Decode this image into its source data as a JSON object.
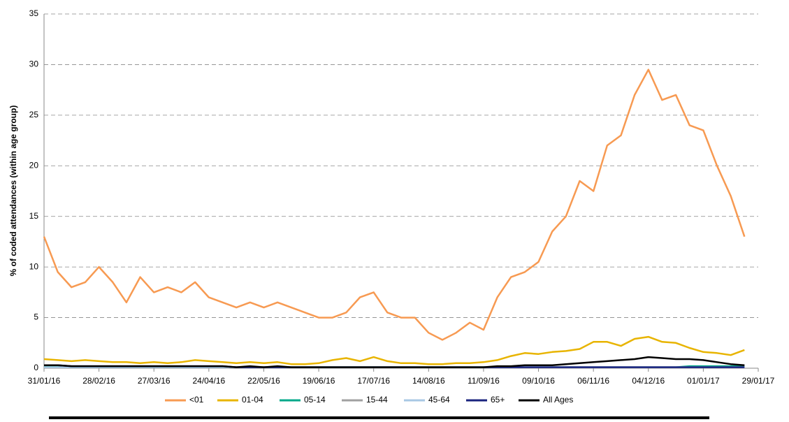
{
  "chart_data": {
    "type": "line",
    "y_label": "% of coded attendances (within age group)",
    "x": [
      "31/01/16",
      "07/02/16",
      "14/02/16",
      "21/02/16",
      "28/02/16",
      "06/03/16",
      "13/03/16",
      "20/03/16",
      "27/03/16",
      "03/04/16",
      "10/04/16",
      "17/04/16",
      "24/04/16",
      "01/05/16",
      "08/05/16",
      "15/05/16",
      "22/05/16",
      "29/05/16",
      "05/06/16",
      "12/06/16",
      "19/06/16",
      "26/06/16",
      "03/07/16",
      "10/07/16",
      "17/07/16",
      "24/07/16",
      "31/07/16",
      "07/08/16",
      "14/08/16",
      "21/08/16",
      "28/08/16",
      "04/09/16",
      "11/09/16",
      "18/09/16",
      "25/09/16",
      "02/10/16",
      "09/10/16",
      "16/10/16",
      "23/10/16",
      "30/10/16",
      "06/11/16",
      "13/11/16",
      "20/11/16",
      "27/11/16",
      "04/12/16",
      "11/12/16",
      "18/12/16",
      "25/12/16",
      "01/01/17",
      "08/01/17",
      "15/01/17",
      "22/01/17"
    ],
    "xlim": [
      "31/01/16",
      "29/01/17"
    ],
    "xticks": [
      "31/01/16",
      "28/02/16",
      "27/03/16",
      "24/04/16",
      "22/05/16",
      "19/06/16",
      "17/07/16",
      "14/08/16",
      "11/09/16",
      "09/10/16",
      "06/11/16",
      "04/12/16",
      "01/01/17",
      "29/01/17"
    ],
    "ylim": [
      0,
      35
    ],
    "yticks": [
      0,
      5,
      10,
      15,
      20,
      25,
      30,
      35
    ],
    "grid": true,
    "series": [
      {
        "name": "<01",
        "color": "#f79a52",
        "values": [
          13,
          9.5,
          8,
          8.5,
          10,
          8.5,
          6.5,
          9,
          7.5,
          8,
          7.5,
          8.5,
          7,
          6.5,
          6,
          6.5,
          6,
          6.5,
          6,
          5.5,
          5,
          5,
          5.5,
          7,
          7.5,
          5.5,
          5,
          5,
          3.5,
          2.8,
          3.5,
          4.5,
          3.8,
          7,
          9,
          9.5,
          10.5,
          13.5,
          15,
          18.5,
          17.5,
          22,
          23,
          27,
          29.5,
          26.5,
          27,
          24,
          23.5,
          20,
          17,
          13
        ]
      },
      {
        "name": "01-04",
        "color": "#e8b400",
        "values": [
          0.9,
          0.8,
          0.7,
          0.8,
          0.7,
          0.6,
          0.6,
          0.5,
          0.6,
          0.5,
          0.6,
          0.8,
          0.7,
          0.6,
          0.5,
          0.6,
          0.5,
          0.6,
          0.4,
          0.4,
          0.5,
          0.8,
          1.0,
          0.7,
          1.1,
          0.7,
          0.5,
          0.5,
          0.4,
          0.4,
          0.5,
          0.5,
          0.6,
          0.8,
          1.2,
          1.5,
          1.4,
          1.6,
          1.7,
          1.9,
          2.6,
          2.6,
          2.2,
          2.9,
          3.1,
          2.6,
          2.5,
          2.0,
          1.6,
          1.5,
          1.3,
          1.8
        ]
      },
      {
        "name": "05-14",
        "color": "#00a88a",
        "values": [
          0.2,
          0.2,
          0.1,
          0.1,
          0.1,
          0.1,
          0.1,
          0.1,
          0.1,
          0.1,
          0.1,
          0.1,
          0.1,
          0.1,
          0.1,
          0.1,
          0.1,
          0.1,
          0.1,
          0.1,
          0.1,
          0.1,
          0.1,
          0.1,
          0.1,
          0.1,
          0.1,
          0.1,
          0.1,
          0.1,
          0.1,
          0.1,
          0.1,
          0.1,
          0.1,
          0.1,
          0.1,
          0.1,
          0.1,
          0.1,
          0.1,
          0.1,
          0.1,
          0.1,
          0.1,
          0.1,
          0.1,
          0.2,
          0.2,
          0.2,
          0.2,
          0.2
        ]
      },
      {
        "name": "15-44",
        "color": "#a0a0a0",
        "values": [
          0.1,
          0.1,
          0.1,
          0.1,
          0.1,
          0.1,
          0.1,
          0.1,
          0.1,
          0.1,
          0.1,
          0.1,
          0.1,
          0.1,
          0.1,
          0.1,
          0.1,
          0.1,
          0.1,
          0.1,
          0.1,
          0.1,
          0.1,
          0.1,
          0.1,
          0.1,
          0.1,
          0.1,
          0.1,
          0.1,
          0.1,
          0.1,
          0.1,
          0.1,
          0.1,
          0.1,
          0.1,
          0.1,
          0.1,
          0.1,
          0.1,
          0.1,
          0.1,
          0.1,
          0.1,
          0.1,
          0.1,
          0.1,
          0.1,
          0.1,
          0.1,
          0.1
        ]
      },
      {
        "name": "45-64",
        "color": "#a8c8e4",
        "values": [
          0.1,
          0.1,
          0.1,
          0.1,
          0.1,
          0.1,
          0.1,
          0.1,
          0.1,
          0.1,
          0.1,
          0.1,
          0.1,
          0.1,
          0.1,
          0.1,
          0.1,
          0.1,
          0.1,
          0.1,
          0.1,
          0.1,
          0.1,
          0.1,
          0.1,
          0.1,
          0.1,
          0.1,
          0.1,
          0.1,
          0.1,
          0.1,
          0.1,
          0.1,
          0.1,
          0.1,
          0.1,
          0.1,
          0.1,
          0.1,
          0.1,
          0.1,
          0.1,
          0.1,
          0.1,
          0.1,
          0.1,
          0.1,
          0.1,
          0.1,
          0.1,
          0.1
        ]
      },
      {
        "name": "65+",
        "color": "#1a237e",
        "values": [
          0.3,
          0.3,
          0.2,
          0.2,
          0.2,
          0.2,
          0.2,
          0.2,
          0.2,
          0.2,
          0.2,
          0.2,
          0.2,
          0.2,
          0.1,
          0.1,
          0.1,
          0.1,
          0.1,
          0.1,
          0.1,
          0.1,
          0.1,
          0.1,
          0.1,
          0.1,
          0.1,
          0.1,
          0.1,
          0.1,
          0.1,
          0.1,
          0.1,
          0.1,
          0.1,
          0.1,
          0.1,
          0.1,
          0.1,
          0.1,
          0.1,
          0.1,
          0.1,
          0.1,
          0.1,
          0.1,
          0.1,
          0.1,
          0.1,
          0.1,
          0.1,
          0.1
        ]
      },
      {
        "name": "All Ages",
        "color": "#000000",
        "values": [
          0.3,
          0.3,
          0.2,
          0.2,
          0.2,
          0.2,
          0.2,
          0.2,
          0.2,
          0.2,
          0.2,
          0.2,
          0.2,
          0.2,
          0.1,
          0.2,
          0.1,
          0.2,
          0.1,
          0.1,
          0.1,
          0.1,
          0.1,
          0.1,
          0.1,
          0.1,
          0.1,
          0.1,
          0.1,
          0.1,
          0.1,
          0.1,
          0.1,
          0.2,
          0.2,
          0.3,
          0.3,
          0.3,
          0.4,
          0.5,
          0.6,
          0.7,
          0.8,
          0.9,
          1.1,
          1.0,
          0.9,
          0.9,
          0.8,
          0.6,
          0.4,
          0.3
        ]
      }
    ]
  }
}
